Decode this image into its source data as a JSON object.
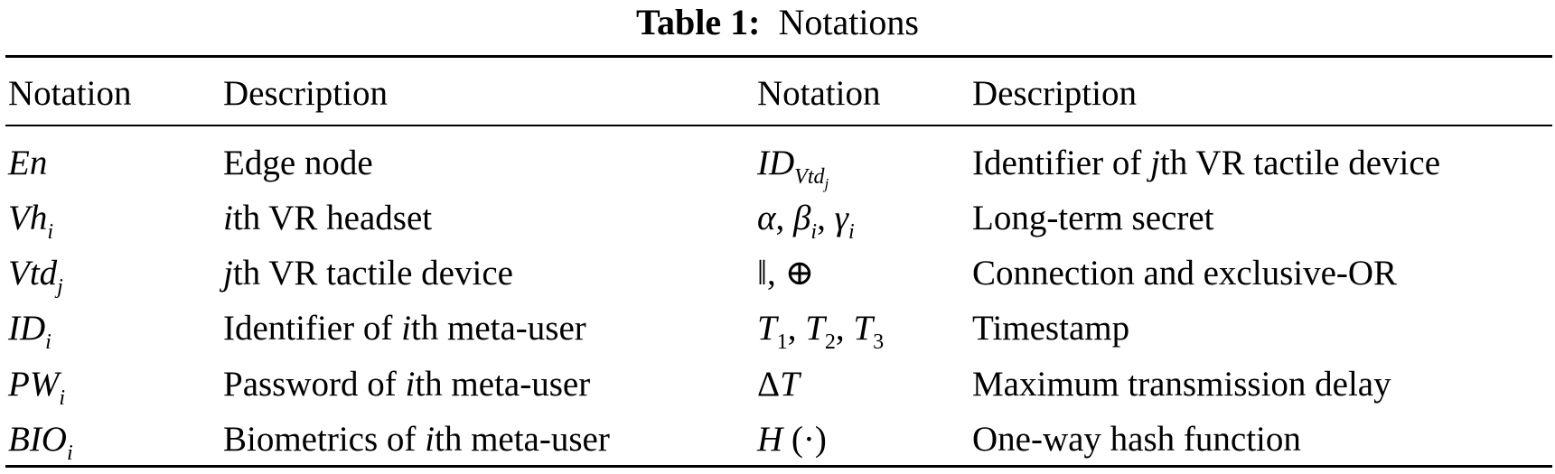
{
  "title": {
    "label": "Table 1:",
    "text": "Notations"
  },
  "headers": [
    "Notation",
    "Description",
    "Notation",
    "Description"
  ],
  "rows": [
    {
      "n1": [
        {
          "t": "En",
          "s": "it"
        }
      ],
      "d1": [
        {
          "t": "Edge node",
          "s": "n"
        }
      ],
      "n2": [
        {
          "t": "ID",
          "s": "it"
        },
        {
          "t": "Vtd",
          "s": "sub",
          "inner": "j"
        }
      ],
      "d2": [
        {
          "t": "Identifier of ",
          "s": "n"
        },
        {
          "t": "j",
          "s": "it"
        },
        {
          "t": "th VR tactile device",
          "s": "n"
        }
      ]
    },
    {
      "n1": [
        {
          "t": "Vh",
          "s": "it"
        },
        {
          "t": "i",
          "s": "sub"
        }
      ],
      "d1": [
        {
          "t": "i",
          "s": "it"
        },
        {
          "t": "th VR headset",
          "s": "n"
        }
      ],
      "n2": [
        {
          "t": "α",
          "s": "it"
        },
        {
          "t": ", ",
          "s": "n"
        },
        {
          "t": "β",
          "s": "it"
        },
        {
          "t": "i",
          "s": "sub"
        },
        {
          "t": ", ",
          "s": "n"
        },
        {
          "t": "γ",
          "s": "it"
        },
        {
          "t": "i",
          "s": "sub"
        }
      ],
      "d2": [
        {
          "t": "Long-term secret",
          "s": "n"
        }
      ]
    },
    {
      "n1": [
        {
          "t": "Vtd",
          "s": "it"
        },
        {
          "t": "j",
          "s": "sub"
        }
      ],
      "d1": [
        {
          "t": "j",
          "s": "it"
        },
        {
          "t": "th VR tactile device",
          "s": "n"
        }
      ],
      "n2": [
        {
          "t": "‖, ⊕",
          "s": "n"
        }
      ],
      "d2": [
        {
          "t": "Connection and exclusive-OR",
          "s": "n"
        }
      ]
    },
    {
      "n1": [
        {
          "t": "ID",
          "s": "it"
        },
        {
          "t": "i",
          "s": "sub"
        }
      ],
      "d1": [
        {
          "t": "Identifier of ",
          "s": "n"
        },
        {
          "t": "i",
          "s": "it"
        },
        {
          "t": "th meta-user",
          "s": "n"
        }
      ],
      "n2": [
        {
          "t": "T",
          "s": "it"
        },
        {
          "t": "1",
          "s": "subn"
        },
        {
          "t": ", ",
          "s": "n"
        },
        {
          "t": "T",
          "s": "it"
        },
        {
          "t": "2",
          "s": "subn"
        },
        {
          "t": ", ",
          "s": "n"
        },
        {
          "t": "T",
          "s": "it"
        },
        {
          "t": "3",
          "s": "subn"
        }
      ],
      "d2": [
        {
          "t": "Timestamp",
          "s": "n"
        }
      ]
    },
    {
      "n1": [
        {
          "t": "PW",
          "s": "it"
        },
        {
          "t": "i",
          "s": "sub"
        }
      ],
      "d1": [
        {
          "t": "Password of ",
          "s": "n"
        },
        {
          "t": "i",
          "s": "it"
        },
        {
          "t": "th meta-user",
          "s": "n"
        }
      ],
      "n2": [
        {
          "t": "Δ",
          "s": "n"
        },
        {
          "t": "T",
          "s": "it"
        }
      ],
      "d2": [
        {
          "t": "Maximum transmission delay",
          "s": "n"
        }
      ]
    },
    {
      "n1": [
        {
          "t": "BIO",
          "s": "it"
        },
        {
          "t": "i",
          "s": "sub"
        }
      ],
      "d1": [
        {
          "t": "Biometrics of ",
          "s": "n"
        },
        {
          "t": "i",
          "s": "it"
        },
        {
          "t": "th meta-user",
          "s": "n"
        }
      ],
      "n2": [
        {
          "t": "H",
          "s": "it"
        },
        {
          "t": " (·)",
          "s": "n"
        }
      ],
      "d2": [
        {
          "t": "One-way hash function",
          "s": "n"
        }
      ]
    }
  ]
}
